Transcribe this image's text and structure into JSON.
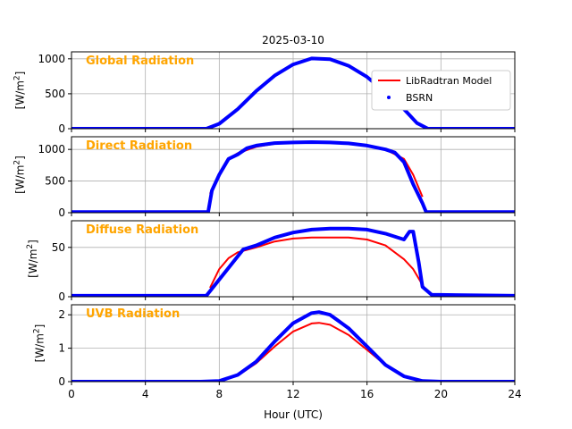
{
  "figure": {
    "title": "2025-03-10",
    "xlabel": "Hour (UTC)",
    "xticks": [
      0,
      4,
      8,
      12,
      16,
      20,
      24
    ],
    "xlim": [
      0,
      24
    ]
  },
  "legend": {
    "placement": "top-right of first panel",
    "entries": [
      {
        "label": "LibRadtran Model",
        "color": "#ff0000",
        "style": "line"
      },
      {
        "label": "BSRN",
        "color": "#0000ff",
        "style": "dot"
      }
    ]
  },
  "chart_data": [
    {
      "type": "line",
      "title": "Global Radiation",
      "ylabel": "[W/m2]",
      "ylim": [
        0,
        1100
      ],
      "yticks": [
        0,
        500,
        1000
      ],
      "series": [
        {
          "name": "LibRadtran Model",
          "color": "#ff0000",
          "x": [
            7.3,
            8,
            9,
            10,
            11,
            12,
            13,
            14,
            15,
            16,
            17,
            18,
            18.7,
            19.3
          ],
          "y": [
            0,
            70,
            280,
            540,
            760,
            920,
            1000,
            990,
            900,
            740,
            520,
            280,
            80,
            0
          ]
        },
        {
          "name": "BSRN",
          "color": "#0000ff",
          "x": [
            0,
            6.5,
            7.3,
            8,
            9,
            10,
            11,
            12,
            13,
            14,
            15,
            16,
            17,
            18,
            18.7,
            19.3,
            24
          ],
          "y": [
            0,
            0,
            0,
            70,
            280,
            540,
            760,
            920,
            1005,
            995,
            900,
            740,
            520,
            280,
            80,
            0,
            0
          ]
        }
      ]
    },
    {
      "type": "line",
      "title": "Direct Radiation",
      "ylabel": "[W/m2]",
      "ylim": [
        0,
        1200
      ],
      "yticks": [
        0,
        500,
        1000
      ],
      "series": [
        {
          "name": "LibRadtran Model",
          "color": "#ff0000",
          "x": [
            7.5,
            8,
            8.5,
            9,
            10,
            11,
            12,
            13,
            14,
            15,
            16,
            17,
            18,
            18.5,
            19
          ],
          "y": [
            300,
            620,
            850,
            940,
            1040,
            1090,
            1110,
            1115,
            1110,
            1090,
            1060,
            1000,
            850,
            600,
            250
          ]
        },
        {
          "name": "BSRN",
          "color": "#0000ff",
          "x": [
            0,
            7.4,
            7.6,
            8,
            8.5,
            9,
            9.5,
            10,
            11,
            12,
            13,
            14,
            15,
            16,
            17,
            17.5,
            18,
            18.5,
            19,
            19.2,
            24
          ],
          "y": [
            10,
            10,
            350,
            600,
            850,
            920,
            1020,
            1060,
            1100,
            1110,
            1115,
            1110,
            1095,
            1060,
            1000,
            950,
            800,
            450,
            150,
            10,
            10
          ]
        }
      ]
    },
    {
      "type": "line",
      "title": "Diffuse Radiation",
      "ylabel": "[W/m2]",
      "ylim": [
        0,
        77
      ],
      "yticks": [
        0,
        50
      ],
      "series": [
        {
          "name": "LibRadtran Model",
          "color": "#ff0000",
          "x": [
            7.5,
            8,
            8.5,
            9,
            10,
            11,
            12,
            13,
            14,
            15,
            16,
            17,
            18,
            18.5,
            19,
            19.3
          ],
          "y": [
            9,
            28,
            39,
            45,
            50,
            56,
            59,
            60,
            60,
            60,
            58,
            52,
            38,
            28,
            12,
            4
          ]
        },
        {
          "name": "BSRN",
          "color": "#0000ff",
          "x": [
            0,
            7.3,
            9.3,
            10,
            11,
            12,
            13,
            14,
            15,
            16,
            17,
            18,
            18.3,
            18.5,
            18.8,
            19,
            19.5,
            24
          ],
          "y": [
            1,
            1,
            48,
            52,
            60,
            65,
            68,
            69,
            69,
            68,
            64,
            58,
            66,
            66,
            35,
            10,
            2,
            1
          ]
        }
      ]
    },
    {
      "type": "line",
      "title": "UVB Radiation",
      "ylabel": "[W/m2]",
      "ylim": [
        0,
        2.3
      ],
      "yticks": [
        0,
        1,
        2
      ],
      "series": [
        {
          "name": "LibRadtran Model",
          "color": "#ff0000",
          "x": [
            7,
            8,
            9,
            10,
            11,
            12,
            13,
            13.4,
            14,
            15,
            16,
            17,
            18,
            19,
            20
          ],
          "y": [
            0,
            0.02,
            0.18,
            0.55,
            1.05,
            1.5,
            1.74,
            1.76,
            1.7,
            1.4,
            0.95,
            0.5,
            0.17,
            0.02,
            0
          ]
        },
        {
          "name": "BSRN",
          "color": "#0000ff",
          "x": [
            0,
            7,
            8,
            9,
            10,
            11,
            12,
            13,
            13.4,
            14,
            15,
            16,
            17,
            18,
            19,
            20,
            24
          ],
          "y": [
            0,
            0,
            0.02,
            0.2,
            0.6,
            1.2,
            1.75,
            2.05,
            2.08,
            2.0,
            1.6,
            1.05,
            0.5,
            0.16,
            0.02,
            0,
            0
          ]
        }
      ]
    }
  ]
}
